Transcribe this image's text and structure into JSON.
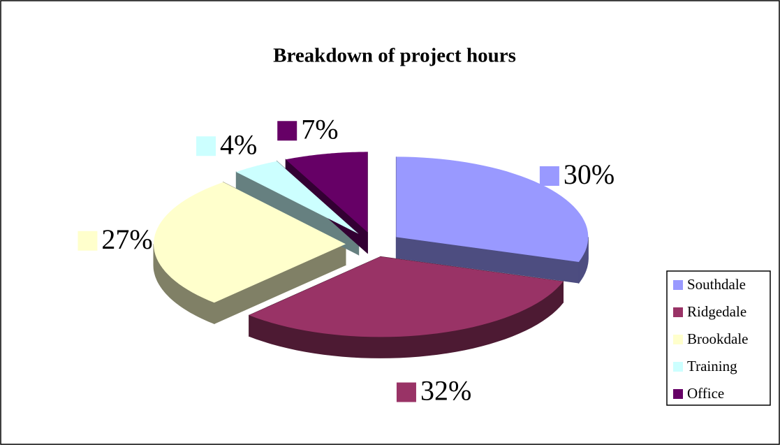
{
  "chart_data": {
    "type": "pie",
    "title": "Breakdown of project hours",
    "categories": [
      "Southdale",
      "Ridgedale",
      "Brookdale",
      "Training",
      "Office"
    ],
    "values": [
      30,
      32,
      27,
      4,
      7
    ],
    "value_labels": [
      "30%",
      "32%",
      "27%",
      "4%",
      "7%"
    ],
    "colors": [
      "#9999ff",
      "#993366",
      "#ffffcc",
      "#ccffff",
      "#660066"
    ],
    "legend": "right",
    "exploded": true,
    "three_d": true
  }
}
